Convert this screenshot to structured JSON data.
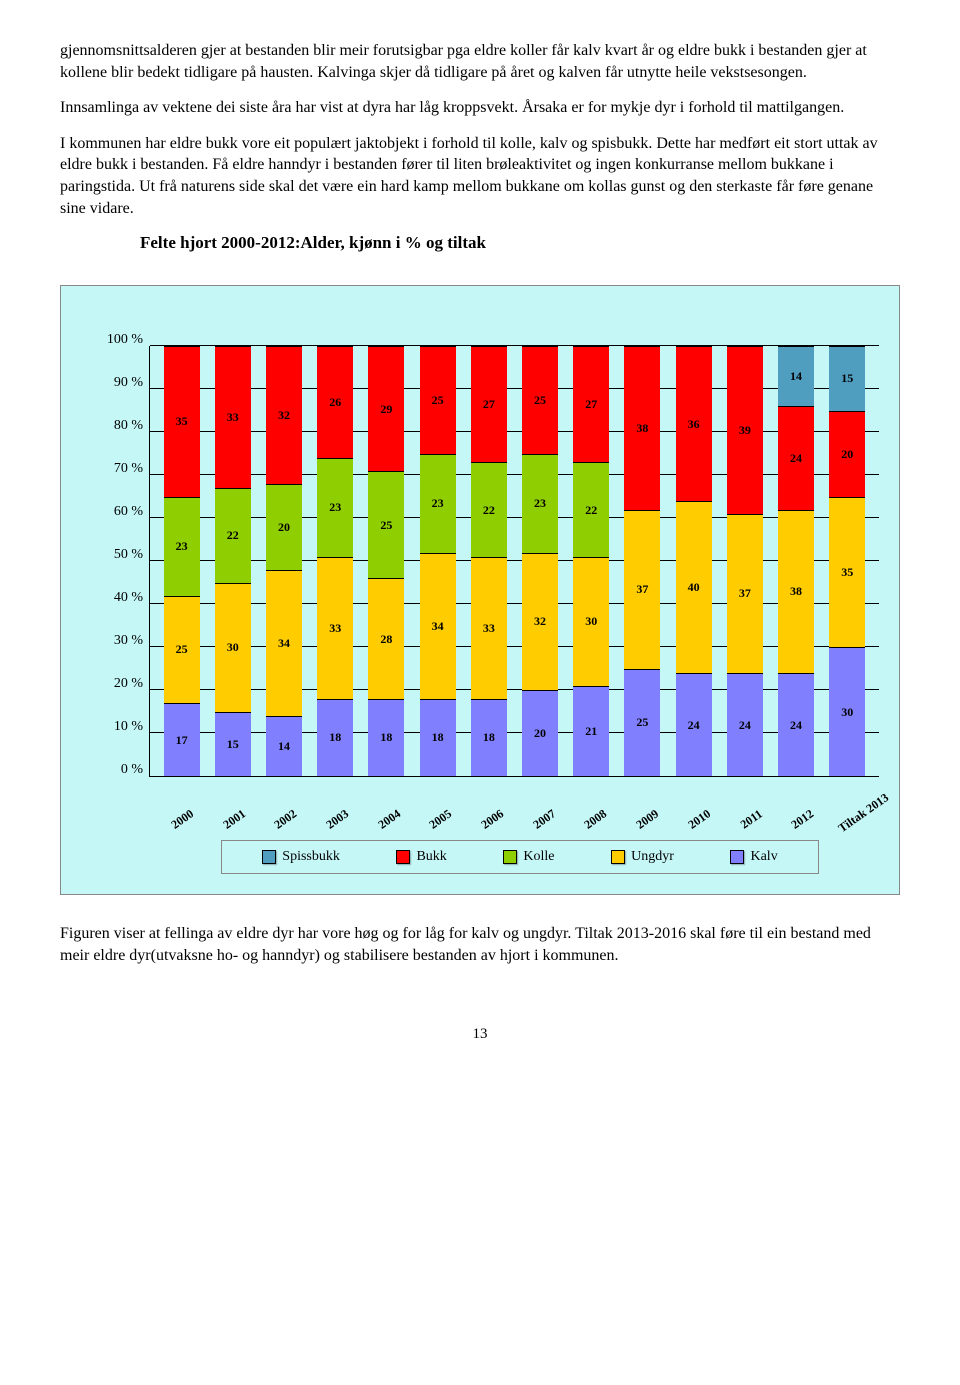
{
  "paragraphs": {
    "p1": "gjennomsnittsalderen gjer at bestanden blir meir forutsigbar pga eldre koller får kalv kvart år og eldre bukk i bestanden gjer at kollene blir bedekt tidligare på hausten. Kalvinga skjer då tidligare på året og kalven får utnytte heile vekstsesongen.",
    "p2": "Innsamlinga av vektene dei siste åra har vist at dyra har låg kroppsvekt. Årsaka er for mykje dyr i forhold til mattilgangen.",
    "p3": "I kommunen har eldre bukk vore eit populært jaktobjekt i forhold til kolle, kalv og spisbukk. Dette har medført eit stort uttak av eldre bukk i bestanden. Få eldre hanndyr i bestanden fører til liten brøleaktivitet og ingen konkurranse mellom bukkane i paringstida. Ut frå naturens side skal det være ein hard kamp mellom bukkane om kollas gunst og den sterkaste får føre genane sine vidare.",
    "p4": "Figuren viser at fellinga av eldre dyr har vore høg og for låg for kalv og ungdyr. Tiltak 2013-2016 skal føre til ein bestand med meir eldre dyr(utvaksne ho- og hanndyr) og stabilisere bestanden av hjort i kommunen."
  },
  "chart": {
    "title": "Felte hjort 2000-2012:Alder, kjønn i % og tiltak",
    "type": "stacked-bar",
    "background_color": "#c6f7f7",
    "categories": [
      "2000",
      "2001",
      "2002",
      "2003",
      "2004",
      "2005",
      "2006",
      "2007",
      "2008",
      "2009",
      "2010",
      "2011",
      "2012",
      "Tiltak 2013"
    ],
    "series_order": [
      "Kalv",
      "Ungdyr",
      "Kolle",
      "Bukk",
      "Spissbukk"
    ],
    "series_colors": {
      "Spissbukk": "#4f9dbf",
      "Bukk": "#ff0000",
      "Kolle": "#8fce00",
      "Ungdyr": "#ffcc00",
      "Kalv": "#8080ff"
    },
    "values": {
      "Kalv": [
        17,
        15,
        14,
        18,
        18,
        18,
        18,
        20,
        21,
        25,
        24,
        24,
        24,
        30
      ],
      "Ungdyr": [
        25,
        30,
        34,
        33,
        28,
        34,
        33,
        32,
        30,
        37,
        40,
        37,
        38,
        35
      ],
      "Kolle": [
        23,
        22,
        20,
        23,
        25,
        23,
        22,
        23,
        22,
        null,
        null,
        null,
        null,
        null
      ],
      "Bukk": [
        35,
        33,
        32,
        26,
        29,
        25,
        27,
        25,
        27,
        38,
        36,
        39,
        24,
        20
      ],
      "Spissbukk": [
        null,
        null,
        null,
        null,
        null,
        null,
        null,
        null,
        null,
        null,
        null,
        null,
        14,
        15
      ]
    },
    "ytick_step": 10,
    "y_tick_labels": [
      "0 %",
      "10 %",
      "20 %",
      "30 %",
      "40 %",
      "50 %",
      "60 %",
      "70 %",
      "80 %",
      "90 %",
      "100 %"
    ],
    "legend": [
      "Spissbukk",
      "Bukk",
      "Kolle",
      "Ungdyr",
      "Kalv"
    ]
  },
  "page_number": "13"
}
